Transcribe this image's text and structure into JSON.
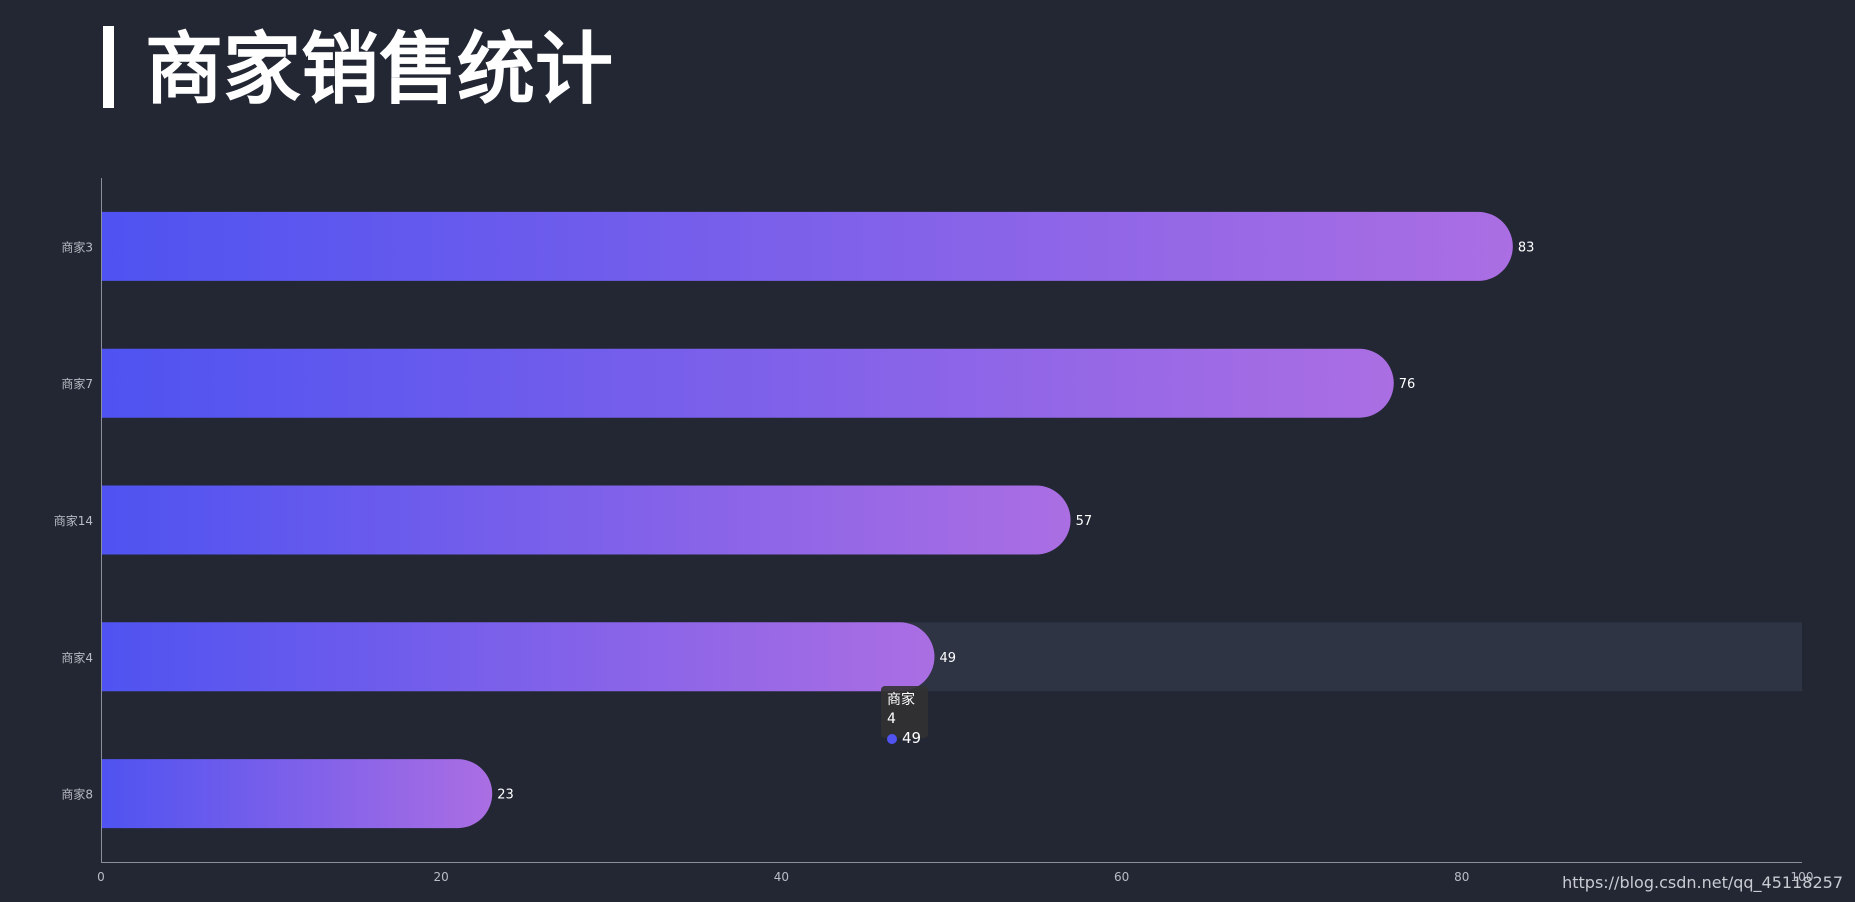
{
  "page": {
    "title": "商家销售统计",
    "watermark": "https://blog.csdn.net/qq_45118257"
  },
  "colors": {
    "background": "#222733",
    "bar_start": "#4f53f1",
    "bar_end": "#ab6ee3",
    "axis": "#8a8f99",
    "tick_label": "#b9bcc4",
    "highlight": "#2e3444",
    "tooltip_dot": "#5053f0"
  },
  "tooltip": {
    "category": "商家4",
    "value": "49"
  },
  "chart_data": {
    "type": "bar",
    "orientation": "horizontal",
    "categories": [
      "商家3",
      "商家7",
      "商家14",
      "商家4",
      "商家8"
    ],
    "values": [
      83,
      76,
      57,
      49,
      23
    ],
    "xlim": [
      0,
      100
    ],
    "xticks": [
      0,
      20,
      40,
      60,
      80,
      100
    ],
    "highlighted_category": "商家4",
    "grid": false,
    "data_labels": true
  }
}
